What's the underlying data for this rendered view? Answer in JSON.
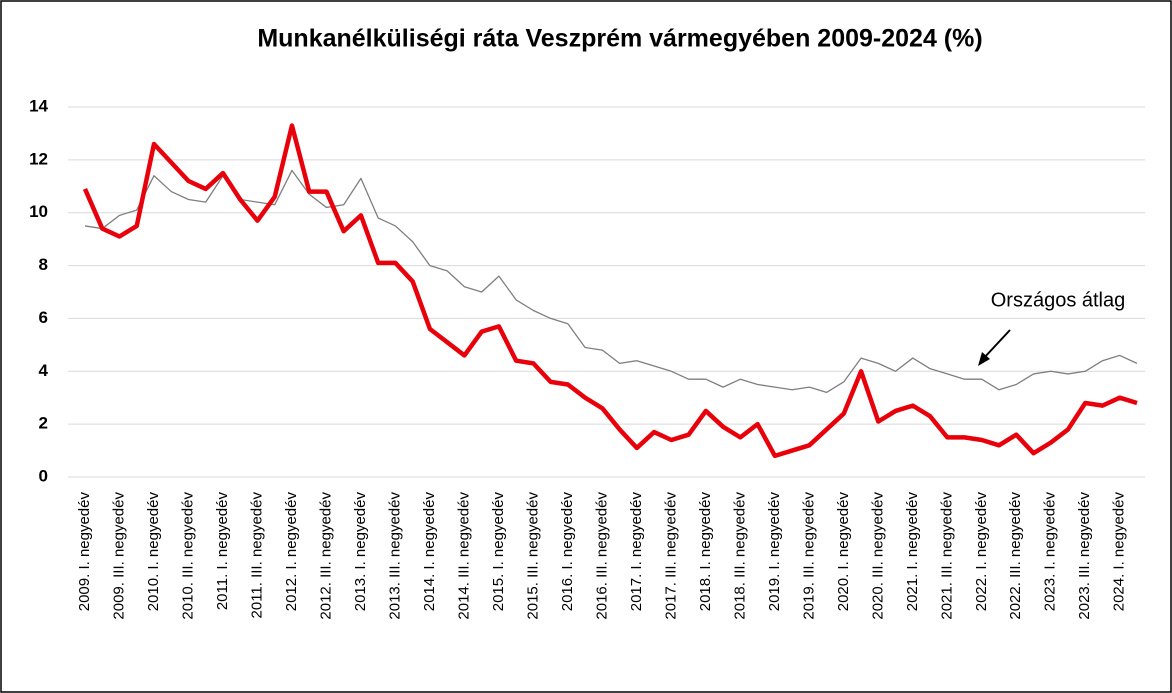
{
  "chart_data": {
    "type": "line",
    "title": "Munkanélküliségi ráta Veszprém vármegyében 2009-2024 (%)",
    "categories": [
      "2009. I. negyedév",
      null,
      "2009. III. negyedév",
      null,
      "2010. I. negyedév",
      null,
      "2010. III. negyedév",
      null,
      "2011. I. negyedév",
      null,
      "2011. III. negyedév",
      null,
      "2012. I. negyedév",
      null,
      "2012. III. negyedév",
      null,
      "2013. I. negyedév",
      null,
      "2013. III. negyedév",
      null,
      "2014. I. negyedév",
      null,
      "2014. III. negyedév",
      null,
      "2015. I. negyedév",
      null,
      "2015. III. negyedév",
      null,
      "2016. I. negyedév",
      null,
      "2016. III. negyedév",
      null,
      "2017. I. negyedév",
      null,
      "2017. III. negyedév",
      null,
      "2018. I. negyedév",
      null,
      "2018. III. negyedév",
      null,
      "2019. I. negyedév",
      null,
      "2019. III. negyedév",
      null,
      "2020. I. negyedév",
      null,
      "2020. III. negyedév",
      null,
      "2021. I. negyedév",
      null,
      "2021. III. negyedév",
      null,
      "2022. I. negyedév",
      null,
      "2022. III. negyedév",
      null,
      "2023. I. negyedév",
      null,
      "2023. III. negyedév",
      null,
      "2024. I. negyedév",
      null
    ],
    "series": [
      {
        "color": "#e8000b",
        "values": [
          10.9,
          9.4,
          9.1,
          9.5,
          12.6,
          11.9,
          11.2,
          10.9,
          11.5,
          10.5,
          9.7,
          10.6,
          13.3,
          10.8,
          10.8,
          9.3,
          9.9,
          8.1,
          8.1,
          7.4,
          5.6,
          5.1,
          4.6,
          5.5,
          5.7,
          4.4,
          4.3,
          3.6,
          3.5,
          3.0,
          2.6,
          1.8,
          1.1,
          1.7,
          1.4,
          1.6,
          2.5,
          1.9,
          1.5,
          2.0,
          0.8,
          1.0,
          1.2,
          1.8,
          2.4,
          4.0,
          2.1,
          2.5,
          2.7,
          2.3,
          1.5,
          1.5,
          1.4,
          1.2,
          1.6,
          0.9,
          1.3,
          1.8,
          2.8,
          2.7,
          3.0,
          2.8
        ]
      },
      {
        "name": "Országos átlag",
        "color": "#7f7f7f",
        "values": [
          9.5,
          9.4,
          9.9,
          10.1,
          11.4,
          10.8,
          10.5,
          10.4,
          11.4,
          10.5,
          10.4,
          10.3,
          11.6,
          10.7,
          10.2,
          10.3,
          11.3,
          9.8,
          9.5,
          8.9,
          8.0,
          7.8,
          7.2,
          7.0,
          7.6,
          6.7,
          6.3,
          6.0,
          5.8,
          4.9,
          4.8,
          4.3,
          4.4,
          4.2,
          4.0,
          3.7,
          3.7,
          3.4,
          3.7,
          3.5,
          3.4,
          3.3,
          3.4,
          3.2,
          3.6,
          4.5,
          4.3,
          4.0,
          4.5,
          4.1,
          3.9,
          3.7,
          3.7,
          3.3,
          3.5,
          3.9,
          4.0,
          3.9,
          4.0,
          4.4,
          4.6,
          4.3
        ]
      }
    ],
    "ylim": [
      0,
      14
    ],
    "yticks": [
      0,
      2,
      4,
      6,
      8,
      10,
      12,
      14
    ],
    "grid": true
  }
}
